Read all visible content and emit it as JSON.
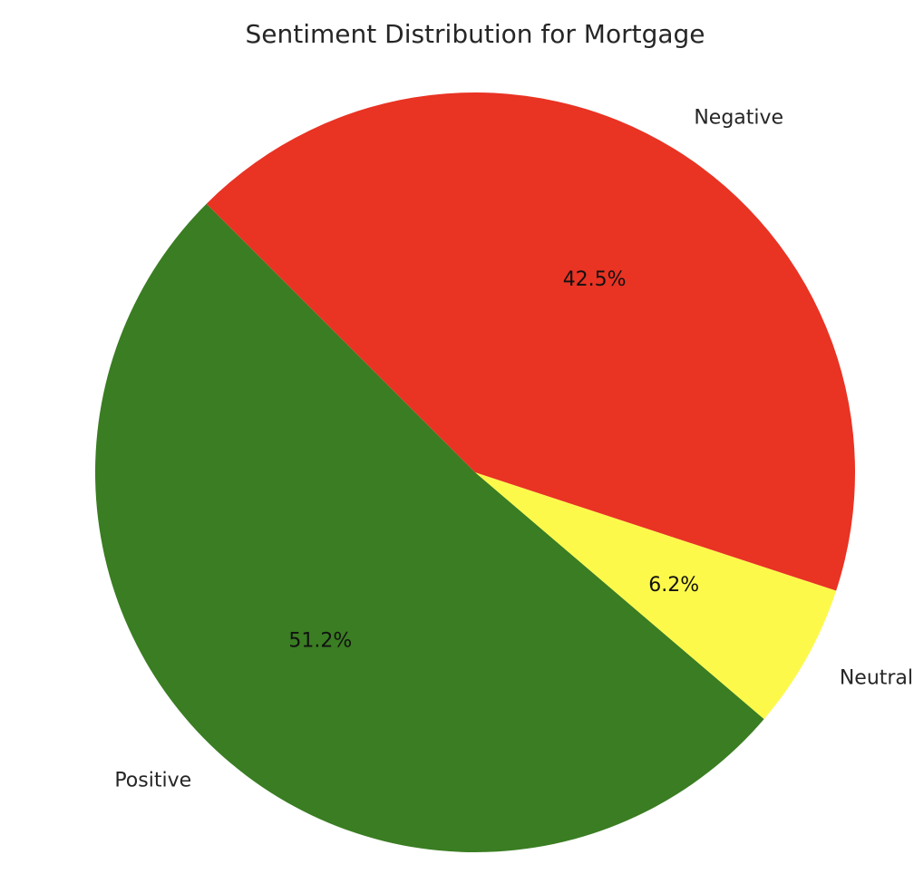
{
  "chart_data": {
    "type": "pie",
    "title": "Sentiment Distribution for Mortgage",
    "categories": [
      "Positive",
      "Neutral",
      "Negative"
    ],
    "values": [
      51.2,
      6.2,
      42.5
    ],
    "value_labels": [
      "51.2%",
      "6.2%",
      "42.5%"
    ],
    "colors": [
      "#3a7d22",
      "#fdf94b",
      "#e93323"
    ],
    "start_angle_deg": 135,
    "direction": "counterclockwise",
    "legend": "none"
  }
}
